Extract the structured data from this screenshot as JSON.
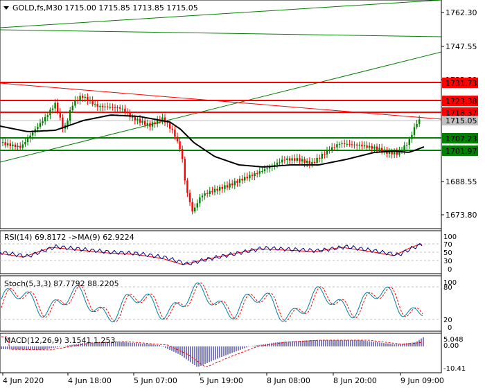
{
  "header": {
    "symbol_line": "GOLD,fs,M30  1715.00 1715.85 1713.85 1715.05"
  },
  "price_axis": [
    "1762.30",
    "1747.55",
    "1732.80",
    "1688.55",
    "1673.80"
  ],
  "level_labels": {
    "r1": {
      "text": "1731.73",
      "color": "#ff0000"
    },
    "r2": {
      "text": "1723.38",
      "color": "#ff0000"
    },
    "r3": {
      "text": "1718.37",
      "color": "#ff0000"
    },
    "current": {
      "text": "1715.05",
      "color": "#c0c0c0"
    },
    "s1": {
      "text": "1707.23",
      "color": "#008000"
    },
    "s2": {
      "text": "1701.97",
      "color": "#008000"
    }
  },
  "rsi": {
    "label": "RSI(14) 69.8172  ->MA(9) 62.9224",
    "scale": [
      "100",
      "70",
      "50",
      "30",
      "0"
    ]
  },
  "stoch": {
    "label": "Stoch(5,3,3) 87.7792 88.2205",
    "scale": [
      "100",
      "80",
      "20",
      "0"
    ]
  },
  "macd": {
    "label": "MACD(12,26,9) 3.1541 1.253",
    "scale": [
      "5.048",
      "0.00",
      "-10.41"
    ]
  },
  "time_axis": [
    "4 Jun 2020",
    "4 Jun 18:00",
    "5 Jun 07:00",
    "5 Jun 19:00",
    "8 Jun 08:00",
    "8 Jun 20:00",
    "9 Jun 09:00"
  ],
  "colors": {
    "bull": "#008000",
    "bear": "#ff0000",
    "ma": "#000000",
    "rsi": "#000080",
    "rsi_ma": "#ff0000",
    "stoch": "#0080a0",
    "signal": "#ff0000"
  },
  "icons": {
    "symbol_menu": "triangle-down-icon"
  }
}
